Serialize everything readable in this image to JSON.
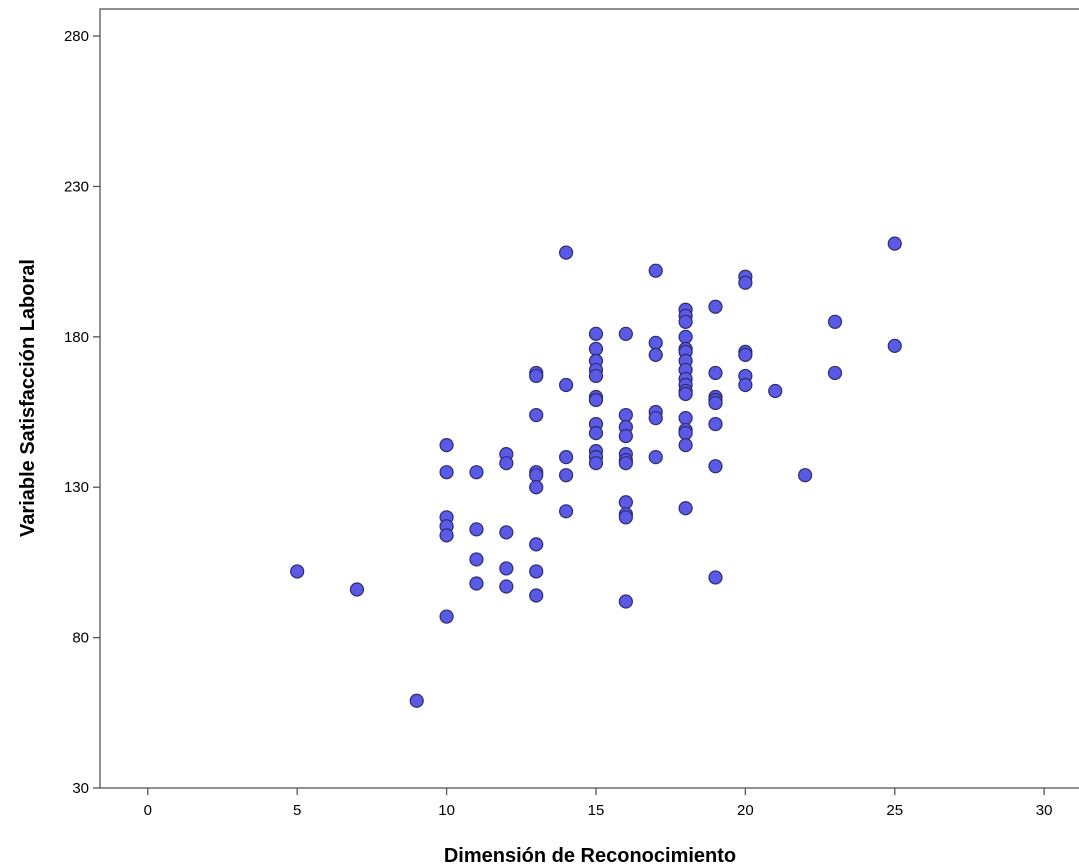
{
  "chart_data": {
    "type": "scatter",
    "title": "",
    "xlabel": "Dimensión de Reconocimiento",
    "ylabel": "Variable Satisfacción Laboral",
    "xlim": [
      -1.6,
      31.2
    ],
    "ylim": [
      30,
      289
    ],
    "xticks": [
      0,
      5,
      10,
      15,
      20,
      25,
      30
    ],
    "yticks": [
      30,
      80,
      130,
      180,
      230,
      280
    ],
    "xtick_labels": [
      "0",
      "5",
      "10",
      "15",
      "20",
      "25",
      "30"
    ],
    "ytick_labels": [
      "30",
      "80",
      "130",
      "180",
      "230",
      "280"
    ],
    "grid": false,
    "legend": "none",
    "colors": {
      "point_fill": "#5a5ae6",
      "point_edge": "#2c2c6e",
      "frame": "#555555"
    },
    "points": [
      [
        5,
        102
      ],
      [
        7,
        96
      ],
      [
        9,
        59
      ],
      [
        10,
        144
      ],
      [
        10,
        135
      ],
      [
        10,
        120
      ],
      [
        10,
        117
      ],
      [
        10,
        114
      ],
      [
        10,
        87
      ],
      [
        11,
        135
      ],
      [
        11,
        116
      ],
      [
        11,
        106
      ],
      [
        11,
        98
      ],
      [
        12,
        141
      ],
      [
        12,
        138
      ],
      [
        12,
        115
      ],
      [
        12,
        103
      ],
      [
        12,
        97
      ],
      [
        13,
        168
      ],
      [
        13,
        167
      ],
      [
        13,
        154
      ],
      [
        13,
        135
      ],
      [
        13,
        134
      ],
      [
        13,
        130
      ],
      [
        13,
        111
      ],
      [
        13,
        102
      ],
      [
        13,
        94
      ],
      [
        14,
        208
      ],
      [
        14,
        164
      ],
      [
        14,
        140
      ],
      [
        14,
        134
      ],
      [
        14,
        122
      ],
      [
        15,
        181
      ],
      [
        15,
        176
      ],
      [
        15,
        172
      ],
      [
        15,
        169
      ],
      [
        15,
        167
      ],
      [
        15,
        160
      ],
      [
        15,
        159
      ],
      [
        15,
        151
      ],
      [
        15,
        148
      ],
      [
        15,
        142
      ],
      [
        15,
        140
      ],
      [
        15,
        138
      ],
      [
        16,
        181
      ],
      [
        16,
        154
      ],
      [
        16,
        150
      ],
      [
        16,
        147
      ],
      [
        16,
        141
      ],
      [
        16,
        139
      ],
      [
        16,
        138
      ],
      [
        16,
        125
      ],
      [
        16,
        121
      ],
      [
        16,
        120
      ],
      [
        16,
        92
      ],
      [
        17,
        202
      ],
      [
        17,
        178
      ],
      [
        17,
        174
      ],
      [
        17,
        155
      ],
      [
        17,
        153
      ],
      [
        17,
        140
      ],
      [
        18,
        189
      ],
      [
        18,
        187
      ],
      [
        18,
        185
      ],
      [
        18,
        180
      ],
      [
        18,
        176
      ],
      [
        18,
        175
      ],
      [
        18,
        172
      ],
      [
        18,
        169
      ],
      [
        18,
        166
      ],
      [
        18,
        164
      ],
      [
        18,
        162
      ],
      [
        18,
        161
      ],
      [
        18,
        153
      ],
      [
        18,
        149
      ],
      [
        18,
        148
      ],
      [
        18,
        144
      ],
      [
        18,
        123
      ],
      [
        19,
        190
      ],
      [
        19,
        168
      ],
      [
        19,
        160
      ],
      [
        19,
        159
      ],
      [
        19,
        158
      ],
      [
        19,
        151
      ],
      [
        19,
        137
      ],
      [
        19,
        100
      ],
      [
        20,
        200
      ],
      [
        20,
        198
      ],
      [
        20,
        175
      ],
      [
        20,
        174
      ],
      [
        20,
        167
      ],
      [
        20,
        164
      ],
      [
        21,
        162
      ],
      [
        22,
        134
      ],
      [
        23,
        185
      ],
      [
        23,
        168
      ],
      [
        25,
        211
      ],
      [
        25,
        177
      ]
    ]
  }
}
